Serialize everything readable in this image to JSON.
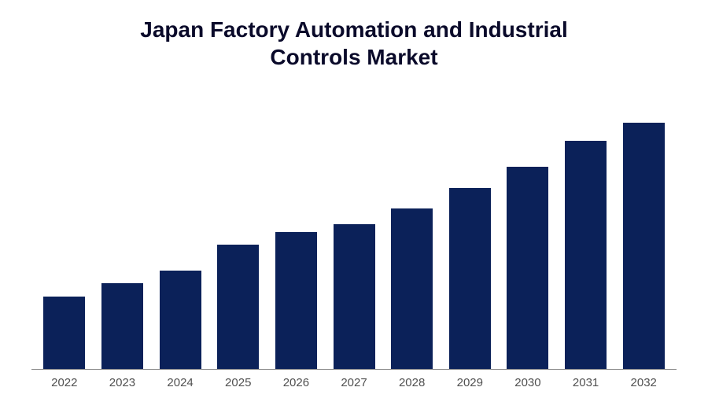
{
  "chart": {
    "type": "bar",
    "title_line1": "Japan Factory Automation and Industrial",
    "title_line2": "Controls Market",
    "title_fontsize": 28,
    "title_color": "#0a0a2a",
    "categories": [
      "2022",
      "2023",
      "2024",
      "2025",
      "2026",
      "2027",
      "2028",
      "2029",
      "2030",
      "2031",
      "2032"
    ],
    "values": [
      28,
      33,
      38,
      48,
      53,
      56,
      62,
      70,
      78,
      88,
      95
    ],
    "bar_color": "#0b2159",
    "label_fontsize": 15,
    "label_color": "#505050",
    "background_color": "#ffffff",
    "axis_line_color": "#888888",
    "bar_width": 0.72,
    "ylim": [
      0,
      100
    ]
  }
}
